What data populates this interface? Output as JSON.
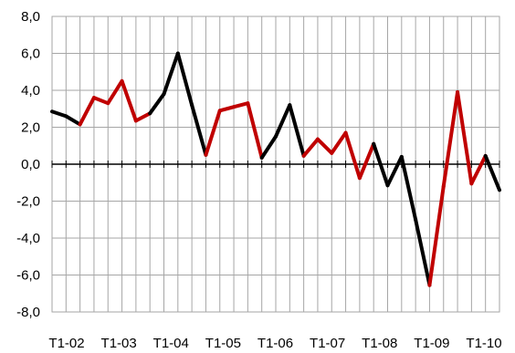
{
  "chart_data": {
    "type": "line",
    "title": "",
    "xlabel": "",
    "ylabel": "",
    "ylim": [
      -8,
      8
    ],
    "yticks": [
      8,
      6,
      4,
      2,
      0,
      -2,
      -4,
      -6,
      -8
    ],
    "ytick_labels": [
      "8,0",
      "6,0",
      "4,0",
      "2,0",
      "0,0",
      "-2,0",
      "-4,0",
      "-6,0",
      "-8,0"
    ],
    "xtick_labels": [
      "T1-02",
      "T1-03",
      "T1-04",
      "T1-05",
      "T1-06",
      "T1-07",
      "T1-08",
      "T1-09",
      "T1-10"
    ],
    "grid": true,
    "colors": {
      "primary": "#000000",
      "highlight": "#c00000",
      "grid": "#a6a6a6"
    },
    "values": [
      2.85,
      2.6,
      2.15,
      3.6,
      3.3,
      4.5,
      2.35,
      2.75,
      3.8,
      6.0,
      3.2,
      0.5,
      2.9,
      3.1,
      3.3,
      0.35,
      1.5,
      3.2,
      0.45,
      1.35,
      0.6,
      1.7,
      -0.75,
      1.1,
      -1.15,
      0.4,
      -3.0,
      -6.55,
      -1.2,
      3.9,
      -1.05,
      0.45,
      -1.4
    ],
    "segment_colors": [
      "black",
      "black",
      "red",
      "red",
      "red",
      "red",
      "red",
      "black",
      "black",
      "black",
      "black",
      "red",
      "red",
      "red",
      "red",
      "black",
      "black",
      "black",
      "red",
      "red",
      "red",
      "red",
      "red",
      "black",
      "black",
      "black",
      "black",
      "red",
      "red",
      "red",
      "red",
      "black"
    ]
  }
}
